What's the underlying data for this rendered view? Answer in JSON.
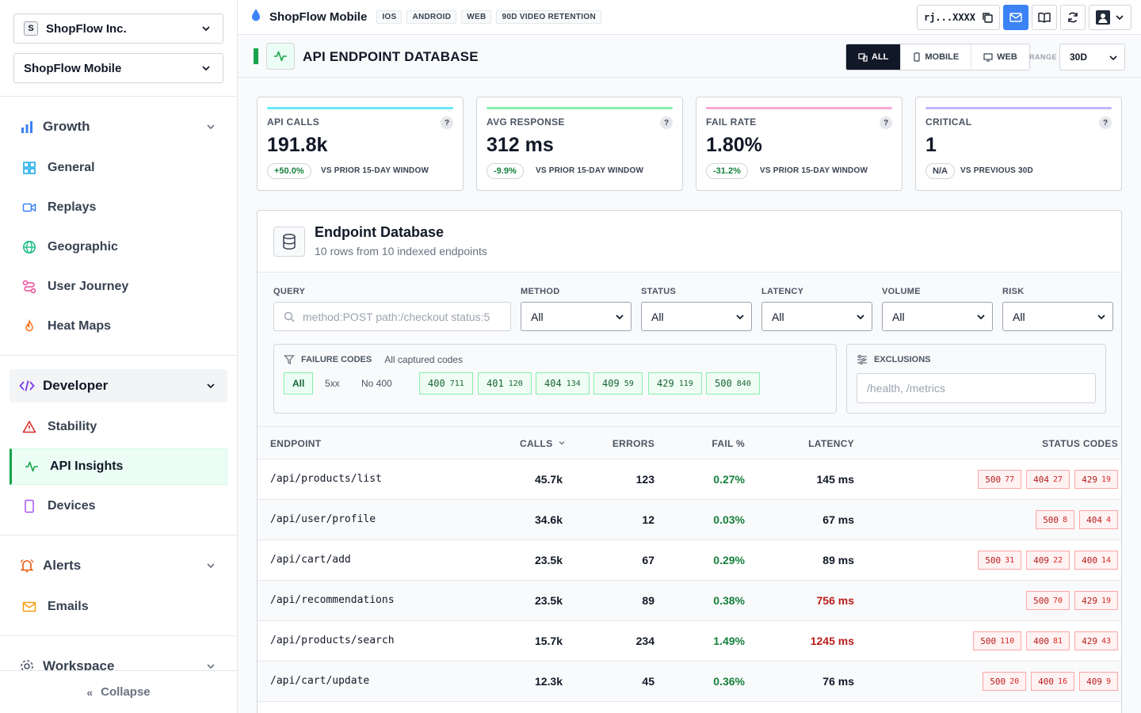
{
  "sidebar": {
    "org": {
      "badge": "S",
      "name": "ShopFlow Inc."
    },
    "project": "ShopFlow Mobile",
    "growth": {
      "label": "Growth",
      "items": [
        {
          "label": "General",
          "icon": "grid-icon"
        },
        {
          "label": "Replays",
          "icon": "video-icon"
        },
        {
          "label": "Geographic",
          "icon": "globe-icon"
        },
        {
          "label": "User Journey",
          "icon": "journey-icon"
        },
        {
          "label": "Heat Maps",
          "icon": "flame-icon"
        }
      ]
    },
    "developer": {
      "label": "Developer",
      "items": [
        {
          "label": "Stability",
          "icon": "warning-icon"
        },
        {
          "label": "API Insights",
          "icon": "activity-icon",
          "active": true
        },
        {
          "label": "Devices",
          "icon": "device-icon"
        }
      ]
    },
    "alerts": {
      "label": "Alerts",
      "items": [
        {
          "label": "Emails",
          "icon": "mail-icon"
        }
      ]
    },
    "workspace": {
      "label": "Workspace"
    },
    "collapse": "Collapse"
  },
  "topbar": {
    "app_name": "ShopFlow Mobile",
    "tags": [
      "IOS",
      "ANDROID",
      "WEB",
      "90D VIDEO RETENTION"
    ],
    "api_key": "rj...XXXX"
  },
  "header": {
    "title": "API ENDPOINT DATABASE",
    "platforms": [
      "ALL",
      "MOBILE",
      "WEB"
    ],
    "active_platform": "ALL",
    "range_label": "RANGE",
    "range_value": "30D"
  },
  "kpis": [
    {
      "label": "API CALLS",
      "value": "191.8k",
      "delta": "+50.0%",
      "compare": "VS PRIOR 15-DAY WINDOW",
      "accent": "#67e8f9"
    },
    {
      "label": "AVG RESPONSE",
      "value": "312 ms",
      "delta": "-9.9%",
      "compare": "VS PRIOR 15-DAY WINDOW",
      "accent": "#86efac"
    },
    {
      "label": "FAIL RATE",
      "value": "1.80%",
      "delta": "-31.2%",
      "compare": "VS PRIOR 15-DAY WINDOW",
      "accent": "#f9a8d4"
    },
    {
      "label": "CRITICAL",
      "value": "1",
      "delta": "N/A",
      "compare": "VS PREVIOUS 30D",
      "accent": "#c4b5fd"
    }
  ],
  "panel": {
    "title": "Endpoint Database",
    "subtitle": "10 rows from 10 indexed endpoints"
  },
  "filters": {
    "query_label": "QUERY",
    "query_placeholder": "method:POST path:/checkout status:5",
    "selects": [
      {
        "label": "METHOD",
        "value": "All"
      },
      {
        "label": "STATUS",
        "value": "All"
      },
      {
        "label": "LATENCY",
        "value": "All"
      },
      {
        "label": "VOLUME",
        "value": "All"
      },
      {
        "label": "RISK",
        "value": "All"
      }
    ],
    "failure_codes": {
      "label": "FAILURE CODES",
      "sublabel": "All captured codes",
      "quick": [
        "All",
        "5xx",
        "No 400"
      ],
      "codes": [
        {
          "code": "400",
          "count": "711"
        },
        {
          "code": "401",
          "count": "120"
        },
        {
          "code": "404",
          "count": "134"
        },
        {
          "code": "409",
          "count": "59"
        },
        {
          "code": "429",
          "count": "119"
        },
        {
          "code": "500",
          "count": "840"
        }
      ]
    },
    "exclusions": {
      "label": "EXCLUSIONS",
      "placeholder": "/health, /metrics"
    }
  },
  "table": {
    "columns": [
      "ENDPOINT",
      "CALLS",
      "ERRORS",
      "FAIL %",
      "LATENCY",
      "STATUS CODES"
    ],
    "rows": [
      {
        "endpoint": "/api/products/list",
        "calls": "45.7k",
        "errors": "123",
        "fail": "0.27%",
        "latency": "145 ms",
        "slow": false,
        "codes": [
          [
            "500",
            "77"
          ],
          [
            "404",
            "27"
          ],
          [
            "429",
            "19"
          ]
        ]
      },
      {
        "endpoint": "/api/user/profile",
        "calls": "34.6k",
        "errors": "12",
        "fail": "0.03%",
        "latency": "67 ms",
        "slow": false,
        "codes": [
          [
            "500",
            "8"
          ],
          [
            "404",
            "4"
          ]
        ]
      },
      {
        "endpoint": "/api/cart/add",
        "calls": "23.5k",
        "errors": "67",
        "fail": "0.29%",
        "latency": "89 ms",
        "slow": false,
        "codes": [
          [
            "500",
            "31"
          ],
          [
            "409",
            "22"
          ],
          [
            "400",
            "14"
          ]
        ]
      },
      {
        "endpoint": "/api/recommendations",
        "calls": "23.5k",
        "errors": "89",
        "fail": "0.38%",
        "latency": "756 ms",
        "slow": true,
        "codes": [
          [
            "500",
            "70"
          ],
          [
            "429",
            "19"
          ]
        ]
      },
      {
        "endpoint": "/api/products/search",
        "calls": "15.7k",
        "errors": "234",
        "fail": "1.49%",
        "latency": "1245 ms",
        "slow": true,
        "codes": [
          [
            "500",
            "110"
          ],
          [
            "400",
            "81"
          ],
          [
            "429",
            "43"
          ]
        ]
      },
      {
        "endpoint": "/api/cart/update",
        "calls": "12.3k",
        "errors": "45",
        "fail": "0.36%",
        "latency": "76 ms",
        "slow": false,
        "codes": [
          [
            "500",
            "20"
          ],
          [
            "400",
            "16"
          ],
          [
            "409",
            "9"
          ]
        ]
      }
    ]
  }
}
